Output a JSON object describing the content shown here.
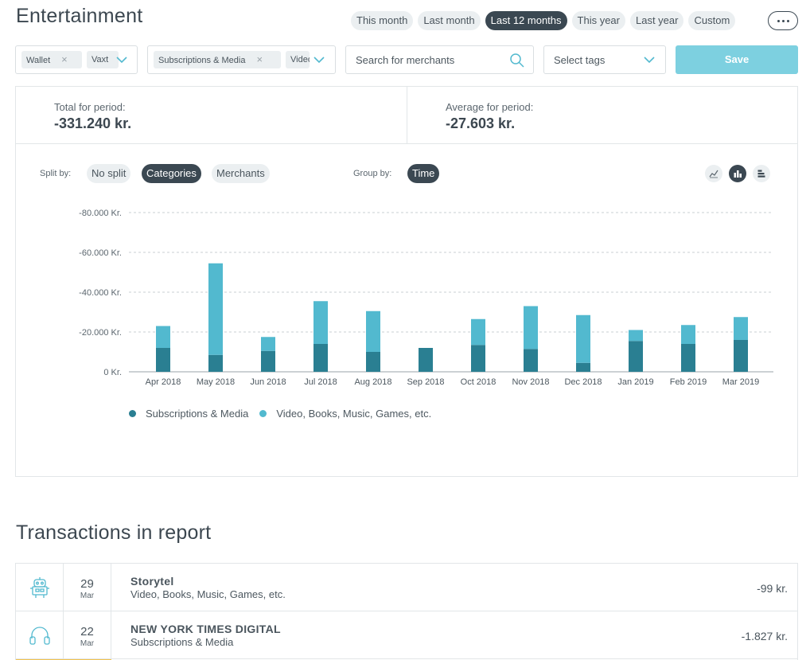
{
  "page": {
    "title": "Entertainment"
  },
  "periods": [
    {
      "label": "This month",
      "active": false
    },
    {
      "label": "Last month",
      "active": false
    },
    {
      "label": "Last 12 months",
      "active": true
    },
    {
      "label": "This year",
      "active": false
    },
    {
      "label": "Last year",
      "active": false
    },
    {
      "label": "Custom",
      "active": false
    }
  ],
  "filters": {
    "accounts": {
      "chips": [
        "Wallet",
        "Vaxt"
      ]
    },
    "categories": {
      "chips": [
        "Subscriptions & Media",
        "Video"
      ]
    },
    "search": {
      "placeholder": "Search for merchants"
    },
    "tags": {
      "placeholder": "Select tags"
    },
    "save_label": "Save"
  },
  "stats": {
    "total_label": "Total for period:",
    "total_value": "-331.240 kr.",
    "average_label": "Average for period:",
    "average_value": "-27.603 kr."
  },
  "controls": {
    "split_label": "Split by:",
    "split_options": [
      {
        "label": "No split",
        "active": false
      },
      {
        "label": "Categories",
        "active": true
      },
      {
        "label": "Merchants",
        "active": false
      }
    ],
    "group_label": "Group by:",
    "group_options": [
      {
        "label": "Time",
        "active": true
      }
    ],
    "view_icons": [
      "line-chart-icon",
      "bar-chart-icon",
      "horizontal-bar-chart-icon"
    ]
  },
  "chart_data": {
    "type": "bar",
    "stacked": true,
    "categories": [
      "Apr 2018",
      "May 2018",
      "Jun 2018",
      "Jul 2018",
      "Aug 2018",
      "Sep 2018",
      "Oct 2018",
      "Nov 2018",
      "Dec 2018",
      "Jan 2019",
      "Feb 2019",
      "Mar 2019"
    ],
    "series": [
      {
        "name": "Subscriptions & Media",
        "color": "#2a7f92",
        "values": [
          12000,
          8500,
          10500,
          14000,
          10000,
          12000,
          13500,
          11500,
          4500,
          15500,
          14000,
          16000
        ]
      },
      {
        "name": "Video, Books, Music, Games, etc.",
        "color": "#52b9cf",
        "values": [
          11000,
          46000,
          7000,
          21500,
          20500,
          0,
          13000,
          21500,
          24000,
          5500,
          9500,
          11500
        ]
      }
    ],
    "y_ticks": [
      "-80.000 Kr.",
      "-60.000 Kr.",
      "-40.000 Kr.",
      "-20.000 Kr.",
      "0 Kr."
    ],
    "ylim": [
      0,
      80000
    ],
    "grid": true,
    "legend": "bottom"
  },
  "transactions": {
    "title": "Transactions in report",
    "rows": [
      {
        "day": "29",
        "month": "Mar",
        "merchant": "Storytel",
        "category": "Video, Books, Music, Games, etc.",
        "amount": "-99 kr.",
        "icon": "robot-icon"
      },
      {
        "day": "22",
        "month": "Mar",
        "merchant": "NEW YORK TIMES DIGITAL",
        "category": "Subscriptions & Media",
        "amount": "-1.827 kr.",
        "icon": "headphones-icon"
      }
    ]
  }
}
